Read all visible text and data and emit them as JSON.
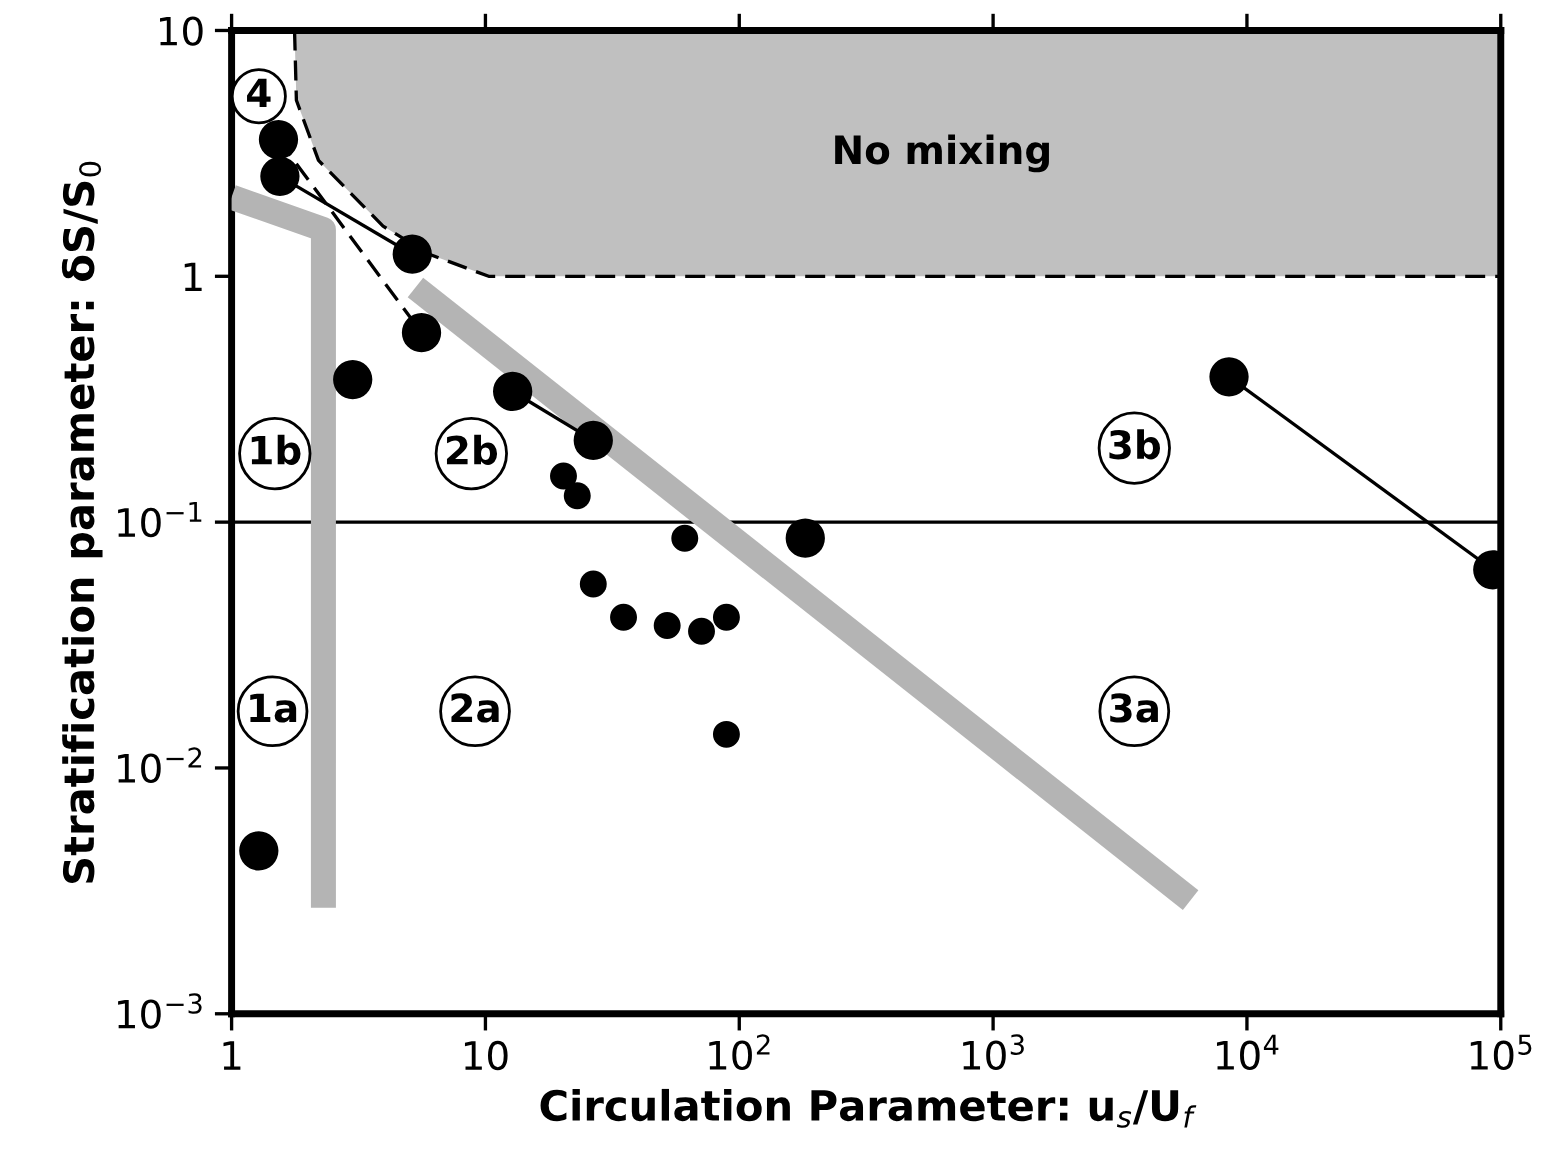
{
  "chart_data": {
    "type": "bubble",
    "xlabel": "Circulation Parameter: u$_{s}$/U$_{f}$",
    "ylabel": "Stratification parameter: δS/S$_{0}$",
    "log": "xy",
    "xlim": [
      1,
      100000
    ],
    "ylim": [
      0.001,
      10
    ],
    "xticks": [
      1,
      10,
      {
        "value": 100,
        "label": "10$^{2}$"
      },
      {
        "value": 1000,
        "label": "10$^{3}$"
      },
      {
        "value": 10000,
        "label": "10$^{4}$"
      },
      {
        "value": 100000,
        "label": "10$^{5}$"
      }
    ],
    "yticks": [
      {
        "value": 0.001,
        "label": "10$^{−3}$"
      },
      {
        "value": 0.01,
        "label": "10$^{−2}$"
      },
      {
        "value": 0.1,
        "label": "10$^{−1}$"
      },
      1,
      10
    ],
    "series": [
      {
        "type": "line",
        "color": "#000000",
        "line_style": "dashed",
        "x": [
          1.77,
          1.8,
          2.2,
          3.95,
          6.0,
          10.3,
          100000
        ],
        "values": [
          10,
          5.2,
          2.96,
          1.6,
          1.23,
          1.0,
          1.0
        ],
        "lower": [
          10,
          5.2,
          2.96,
          1.6,
          1.23,
          1.0,
          1.0
        ],
        "upper": [
          10,
          10,
          10,
          10,
          10,
          10,
          10
        ]
      },
      {
        "type": "line",
        "color": "#b4b4b4",
        "x": [
          1,
          2.3,
          2.3
        ],
        "values": [
          2.1,
          1.55,
          0.0027
        ]
      },
      {
        "type": "line",
        "color": "#b4b4b4",
        "x": [
          5.3,
          6000
        ],
        "values": [
          0.9,
          0.0029
        ]
      },
      {
        "type": "line",
        "color": "#000000",
        "line_style": "solid",
        "x": [
          1.55,
          5.15
        ],
        "values": [
          2.55,
          1.23
        ]
      },
      {
        "type": "line",
        "color": "#000000",
        "line_style": "dashed",
        "x": [
          1.53,
          5.6
        ],
        "values": [
          3.6,
          0.59
        ]
      },
      {
        "type": "line",
        "color": "#000000",
        "line_style": "solid",
        "x": [
          12.8,
          26.6
        ],
        "values": [
          0.34,
          0.215
        ]
      },
      {
        "type": "line",
        "color": "#000000",
        "line_style": "solid",
        "x": [
          8500,
          93000
        ],
        "values": [
          0.39,
          0.064
        ]
      },
      {
        "color": "#000000",
        "marker": "circle",
        "x": [
          1.53,
          1.55,
          5.15,
          5.6,
          3.0,
          12.8,
          26.6,
          20.3,
          23,
          61,
          182,
          26.6,
          35,
          52,
          71,
          89,
          89,
          1.28,
          8500,
          93000
        ],
        "values": [
          3.6,
          2.55,
          1.23,
          0.59,
          0.38,
          0.34,
          0.215,
          0.154,
          0.128,
          0.086,
          0.086,
          0.056,
          0.041,
          0.038,
          0.036,
          0.041,
          0.0137,
          0.0046,
          0.39,
          0.064
        ],
        "sizes": [
          1,
          1,
          1,
          1,
          1,
          1,
          1,
          0.47,
          0.47,
          0.47,
          1,
          0.47,
          0.47,
          0.47,
          0.47,
          0.47,
          0.47,
          1,
          1,
          1
        ]
      }
    ],
    "ref_lines": [
      {
        "axis": "y",
        "value": 0.1,
        "color": "#000000"
      }
    ],
    "annotations": [
      {
        "text": "4",
        "x": 1.28,
        "y": 5.4
      },
      {
        "text": "1b",
        "x": 1.48,
        "y": 0.19
      },
      {
        "text": "2b",
        "x": 8.8,
        "y": 0.19
      },
      {
        "text": "3b",
        "x": 3600,
        "y": 0.2
      },
      {
        "text": "1a",
        "x": 1.45,
        "y": 0.017
      },
      {
        "text": "2a",
        "x": 9.1,
        "y": 0.017
      },
      {
        "text": "3a",
        "x": 3600,
        "y": 0.017
      },
      "No mixing"
    ]
  }
}
